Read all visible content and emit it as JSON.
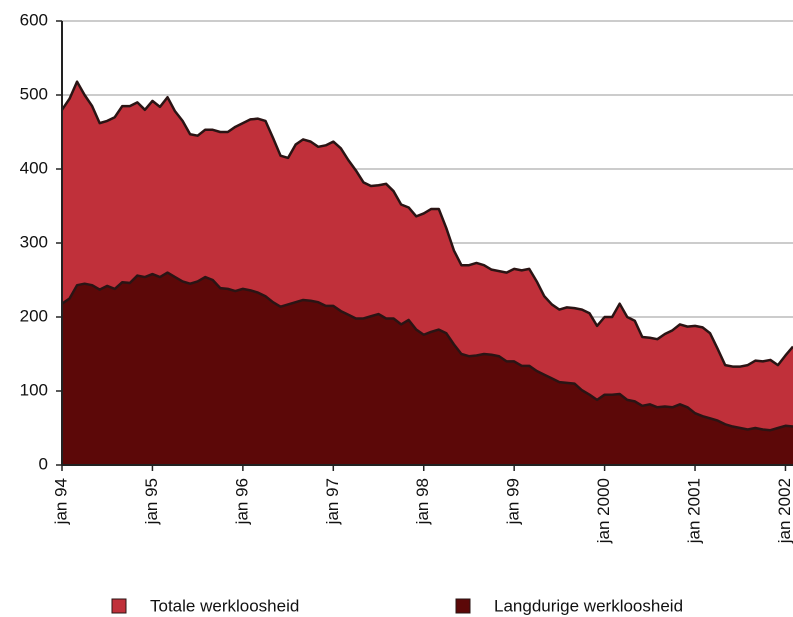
{
  "chart_data": {
    "type": "area",
    "categories": [
      "jan 94",
      null,
      null,
      null,
      null,
      null,
      null,
      null,
      null,
      null,
      null,
      null,
      "jan 95",
      null,
      null,
      null,
      null,
      null,
      null,
      null,
      null,
      null,
      null,
      null,
      "jan 96",
      null,
      null,
      null,
      null,
      null,
      null,
      null,
      null,
      null,
      null,
      null,
      "jan 97",
      null,
      null,
      null,
      null,
      null,
      null,
      null,
      null,
      null,
      null,
      null,
      "jan 98",
      null,
      null,
      null,
      null,
      null,
      null,
      null,
      null,
      null,
      null,
      null,
      "jan 99",
      null,
      null,
      null,
      null,
      null,
      null,
      null,
      null,
      null,
      null,
      null,
      "jan 2000",
      null,
      null,
      null,
      null,
      null,
      null,
      null,
      null,
      null,
      null,
      null,
      "jan 2001",
      null,
      null,
      null,
      null,
      null,
      null,
      null,
      null,
      null,
      null,
      null,
      "jan 2002",
      null
    ],
    "series": [
      {
        "name": "Totale werkloosheid",
        "color": "#c0303a",
        "values": [
          480,
          495,
          518,
          500,
          485,
          462,
          465,
          470,
          485,
          485,
          490,
          480,
          492,
          484,
          497,
          478,
          465,
          447,
          445,
          453,
          453,
          450,
          450,
          457,
          462,
          467,
          468,
          465,
          442,
          418,
          415,
          433,
          440,
          437,
          430,
          432,
          437,
          428,
          412,
          398,
          382,
          377,
          378,
          380,
          370,
          352,
          348,
          336,
          340,
          346,
          346,
          320,
          290,
          270,
          270,
          273,
          270,
          264,
          262,
          260,
          265,
          263,
          265,
          248,
          228,
          217,
          210,
          213,
          212,
          210,
          205,
          188,
          200,
          200,
          218,
          200,
          195,
          173,
          172,
          170,
          177,
          182,
          190,
          187,
          188,
          186,
          178,
          157,
          135,
          133,
          133,
          135,
          141,
          140,
          142,
          135,
          148,
          160
        ]
      },
      {
        "name": "Langdurige werkloosheid",
        "color": "#5c0808",
        "values": [
          218,
          225,
          243,
          245,
          243,
          237,
          242,
          238,
          247,
          246,
          256,
          254,
          258,
          254,
          260,
          254,
          248,
          245,
          248,
          254,
          250,
          239,
          238,
          235,
          238,
          236,
          233,
          228,
          220,
          214,
          217,
          220,
          223,
          222,
          220,
          215,
          215,
          208,
          203,
          198,
          198,
          201,
          204,
          198,
          198,
          190,
          196,
          183,
          176,
          180,
          183,
          178,
          163,
          150,
          147,
          148,
          150,
          149,
          147,
          140,
          140,
          134,
          134,
          127,
          122,
          117,
          112,
          111,
          110,
          101,
          95,
          88,
          95,
          95,
          96,
          88,
          86,
          80,
          82,
          78,
          79,
          78,
          82,
          78,
          70,
          66,
          63,
          60,
          55,
          52,
          50,
          48,
          50,
          48,
          47,
          50,
          53,
          52
        ]
      }
    ],
    "ylim": [
      0,
      600
    ],
    "yticks": [
      0,
      100,
      200,
      300,
      400,
      500,
      600
    ],
    "grid": true
  }
}
